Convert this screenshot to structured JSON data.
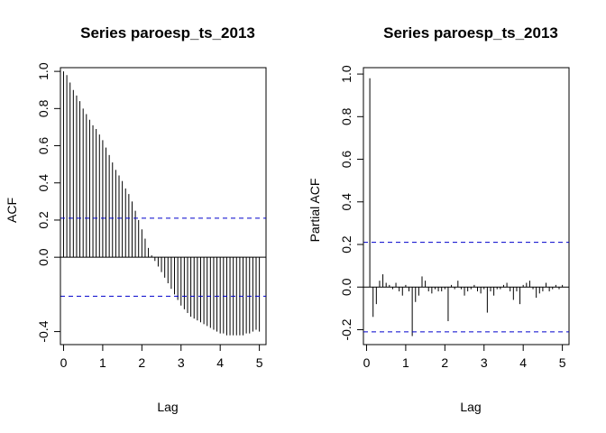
{
  "chart_data": [
    {
      "type": "bar",
      "title": "Series  paroesp_ts_2013",
      "xlabel": "Lag",
      "ylabel": "ACF",
      "xlim": [
        -0.08,
        5.17
      ],
      "ylim": [
        -0.47,
        1.02
      ],
      "xticks": [
        0,
        1,
        2,
        3,
        4,
        5
      ],
      "xtick_labels": [
        "0",
        "1",
        "2",
        "3",
        "4",
        "5"
      ],
      "yticks": [
        -0.4,
        0.0,
        0.2,
        0.4,
        0.6,
        0.8,
        1.0
      ],
      "ytick_labels": [
        "-0.4",
        "0.0",
        "0.2",
        "0.4",
        "0.6",
        "0.8",
        "1.0"
      ],
      "lag_step": 0.0833333,
      "values": [
        1.0,
        0.98,
        0.94,
        0.9,
        0.87,
        0.84,
        0.8,
        0.77,
        0.74,
        0.71,
        0.69,
        0.66,
        0.63,
        0.59,
        0.55,
        0.51,
        0.47,
        0.44,
        0.41,
        0.37,
        0.34,
        0.3,
        0.25,
        0.2,
        0.15,
        0.1,
        0.05,
        0.01,
        -0.02,
        -0.05,
        -0.08,
        -0.11,
        -0.14,
        -0.17,
        -0.2,
        -0.23,
        -0.26,
        -0.28,
        -0.3,
        -0.32,
        -0.33,
        -0.34,
        -0.35,
        -0.36,
        -0.37,
        -0.38,
        -0.39,
        -0.4,
        -0.41,
        -0.41,
        -0.42,
        -0.42,
        -0.42,
        -0.42,
        -0.42,
        -0.42,
        -0.41,
        -0.41,
        -0.4,
        -0.39,
        -0.4
      ],
      "ci": [
        0.21,
        -0.21
      ],
      "colors": {
        "bars": "#000000",
        "ci": "#0000cc"
      }
    },
    {
      "type": "bar",
      "title": "Series  paroesp_ts_2013",
      "xlabel": "Lag",
      "ylabel": "Partial ACF",
      "xlim": [
        -0.08,
        5.17
      ],
      "ylim": [
        -0.27,
        1.03
      ],
      "xticks": [
        0,
        1,
        2,
        3,
        4,
        5
      ],
      "xtick_labels": [
        "0",
        "1",
        "2",
        "3",
        "4",
        "5"
      ],
      "yticks": [
        -0.2,
        0.0,
        0.2,
        0.4,
        0.6,
        0.8,
        1.0
      ],
      "ytick_labels": [
        "-0.2",
        "0.0",
        "0.2",
        "0.4",
        "0.6",
        "0.8",
        "1.0"
      ],
      "lag_step": 0.0833333,
      "values": [
        0.98,
        -0.14,
        -0.08,
        0.03,
        0.06,
        0.02,
        0.01,
        -0.01,
        0.02,
        -0.02,
        -0.04,
        0.01,
        -0.02,
        -0.23,
        -0.07,
        -0.04,
        0.05,
        0.03,
        -0.02,
        -0.03,
        -0.01,
        -0.02,
        -0.02,
        -0.01,
        -0.16,
        0.01,
        -0.01,
        0.03,
        -0.01,
        -0.04,
        -0.02,
        -0.01,
        0.01,
        -0.02,
        -0.03,
        -0.01,
        -0.12,
        -0.02,
        -0.04,
        -0.01,
        -0.01,
        0.01,
        0.02,
        -0.02,
        -0.06,
        -0.02,
        -0.08,
        0.01,
        0.02,
        0.03,
        -0.01,
        -0.05,
        -0.03,
        -0.02,
        0.02,
        -0.02,
        -0.01,
        0.01,
        -0.01,
        0.01
      ],
      "ci": [
        0.21,
        -0.21
      ],
      "colors": {
        "bars": "#000000",
        "ci": "#0000cc"
      }
    }
  ]
}
